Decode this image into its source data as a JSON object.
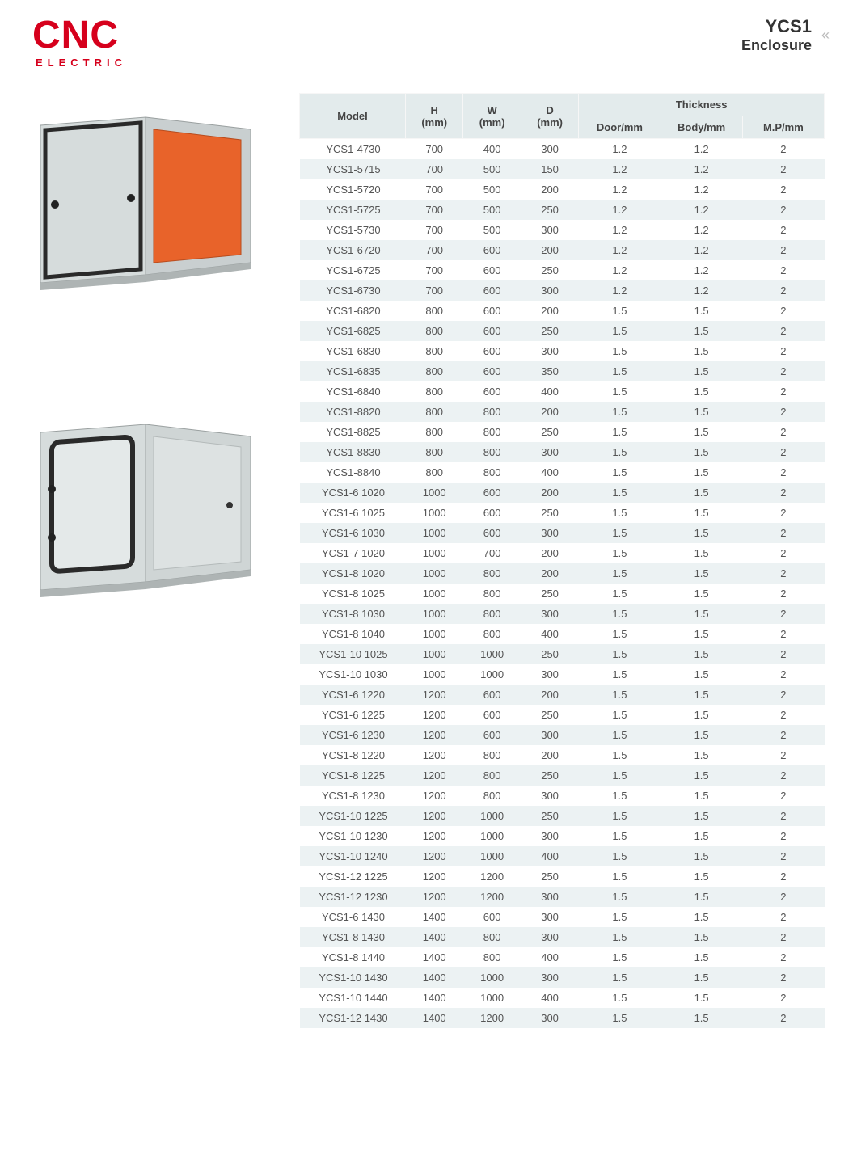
{
  "logo": {
    "main": "CNC",
    "sub": "ELECTRIC"
  },
  "title": {
    "main": "YCS1",
    "sub": "Enclosure"
  },
  "table": {
    "header": {
      "model": "Model",
      "h": "H",
      "h_unit": "(mm)",
      "w": "W",
      "w_unit": "(mm)",
      "d": "D",
      "d_unit": "(mm)",
      "thickness": "Thickness",
      "door": "Door/mm",
      "body": "Body/mm",
      "mp": "M.P/mm"
    },
    "rows": [
      [
        "YCS1-4730",
        "700",
        "400",
        "300",
        "1.2",
        "1.2",
        "2"
      ],
      [
        "YCS1-5715",
        "700",
        "500",
        "150",
        "1.2",
        "1.2",
        "2"
      ],
      [
        "YCS1-5720",
        "700",
        "500",
        "200",
        "1.2",
        "1.2",
        "2"
      ],
      [
        "YCS1-5725",
        "700",
        "500",
        "250",
        "1.2",
        "1.2",
        "2"
      ],
      [
        "YCS1-5730",
        "700",
        "500",
        "300",
        "1.2",
        "1.2",
        "2"
      ],
      [
        "YCS1-6720",
        "700",
        "600",
        "200",
        "1.2",
        "1.2",
        "2"
      ],
      [
        "YCS1-6725",
        "700",
        "600",
        "250",
        "1.2",
        "1.2",
        "2"
      ],
      [
        "YCS1-6730",
        "700",
        "600",
        "300",
        "1.2",
        "1.2",
        "2"
      ],
      [
        "YCS1-6820",
        "800",
        "600",
        "200",
        "1.5",
        "1.5",
        "2"
      ],
      [
        "YCS1-6825",
        "800",
        "600",
        "250",
        "1.5",
        "1.5",
        "2"
      ],
      [
        "YCS1-6830",
        "800",
        "600",
        "300",
        "1.5",
        "1.5",
        "2"
      ],
      [
        "YCS1-6835",
        "800",
        "600",
        "350",
        "1.5",
        "1.5",
        "2"
      ],
      [
        "YCS1-6840",
        "800",
        "600",
        "400",
        "1.5",
        "1.5",
        "2"
      ],
      [
        "YCS1-8820",
        "800",
        "800",
        "200",
        "1.5",
        "1.5",
        "2"
      ],
      [
        "YCS1-8825",
        "800",
        "800",
        "250",
        "1.5",
        "1.5",
        "2"
      ],
      [
        "YCS1-8830",
        "800",
        "800",
        "300",
        "1.5",
        "1.5",
        "2"
      ],
      [
        "YCS1-8840",
        "800",
        "800",
        "400",
        "1.5",
        "1.5",
        "2"
      ],
      [
        "YCS1-6 1020",
        "1000",
        "600",
        "200",
        "1.5",
        "1.5",
        "2"
      ],
      [
        "YCS1-6 1025",
        "1000",
        "600",
        "250",
        "1.5",
        "1.5",
        "2"
      ],
      [
        "YCS1-6 1030",
        "1000",
        "600",
        "300",
        "1.5",
        "1.5",
        "2"
      ],
      [
        "YCS1-7 1020",
        "1000",
        "700",
        "200",
        "1.5",
        "1.5",
        "2"
      ],
      [
        "YCS1-8 1020",
        "1000",
        "800",
        "200",
        "1.5",
        "1.5",
        "2"
      ],
      [
        "YCS1-8 1025",
        "1000",
        "800",
        "250",
        "1.5",
        "1.5",
        "2"
      ],
      [
        "YCS1-8 1030",
        "1000",
        "800",
        "300",
        "1.5",
        "1.5",
        "2"
      ],
      [
        "YCS1-8 1040",
        "1000",
        "800",
        "400",
        "1.5",
        "1.5",
        "2"
      ],
      [
        "YCS1-10 1025",
        "1000",
        "1000",
        "250",
        "1.5",
        "1.5",
        "2"
      ],
      [
        "YCS1-10 1030",
        "1000",
        "1000",
        "300",
        "1.5",
        "1.5",
        "2"
      ],
      [
        "YCS1-6 1220",
        "1200",
        "600",
        "200",
        "1.5",
        "1.5",
        "2"
      ],
      [
        "YCS1-6 1225",
        "1200",
        "600",
        "250",
        "1.5",
        "1.5",
        "2"
      ],
      [
        "YCS1-6 1230",
        "1200",
        "600",
        "300",
        "1.5",
        "1.5",
        "2"
      ],
      [
        "YCS1-8 1220",
        "1200",
        "800",
        "200",
        "1.5",
        "1.5",
        "2"
      ],
      [
        "YCS1-8 1225",
        "1200",
        "800",
        "250",
        "1.5",
        "1.5",
        "2"
      ],
      [
        "YCS1-8 1230",
        "1200",
        "800",
        "300",
        "1.5",
        "1.5",
        "2"
      ],
      [
        "YCS1-10 1225",
        "1200",
        "1000",
        "250",
        "1.5",
        "1.5",
        "2"
      ],
      [
        "YCS1-10 1230",
        "1200",
        "1000",
        "300",
        "1.5",
        "1.5",
        "2"
      ],
      [
        "YCS1-10 1240",
        "1200",
        "1000",
        "400",
        "1.5",
        "1.5",
        "2"
      ],
      [
        "YCS1-12 1225",
        "1200",
        "1200",
        "250",
        "1.5",
        "1.5",
        "2"
      ],
      [
        "YCS1-12 1230",
        "1200",
        "1200",
        "300",
        "1.5",
        "1.5",
        "2"
      ],
      [
        "YCS1-6 1430",
        "1400",
        "600",
        "300",
        "1.5",
        "1.5",
        "2"
      ],
      [
        "YCS1-8 1430",
        "1400",
        "800",
        "300",
        "1.5",
        "1.5",
        "2"
      ],
      [
        "YCS1-8 1440",
        "1400",
        "800",
        "400",
        "1.5",
        "1.5",
        "2"
      ],
      [
        "YCS1-10 1430",
        "1400",
        "1000",
        "300",
        "1.5",
        "1.5",
        "2"
      ],
      [
        "YCS1-10 1440",
        "1400",
        "1000",
        "400",
        "1.5",
        "1.5",
        "2"
      ],
      [
        "YCS1-12 1430",
        "1400",
        "1200",
        "300",
        "1.5",
        "1.5",
        "2"
      ]
    ]
  },
  "colors": {
    "brand": "#d6001c",
    "header_bg": "#e3ebec",
    "row_even": "#ecf2f3",
    "row_odd": "#ffffff",
    "text": "#555555"
  }
}
